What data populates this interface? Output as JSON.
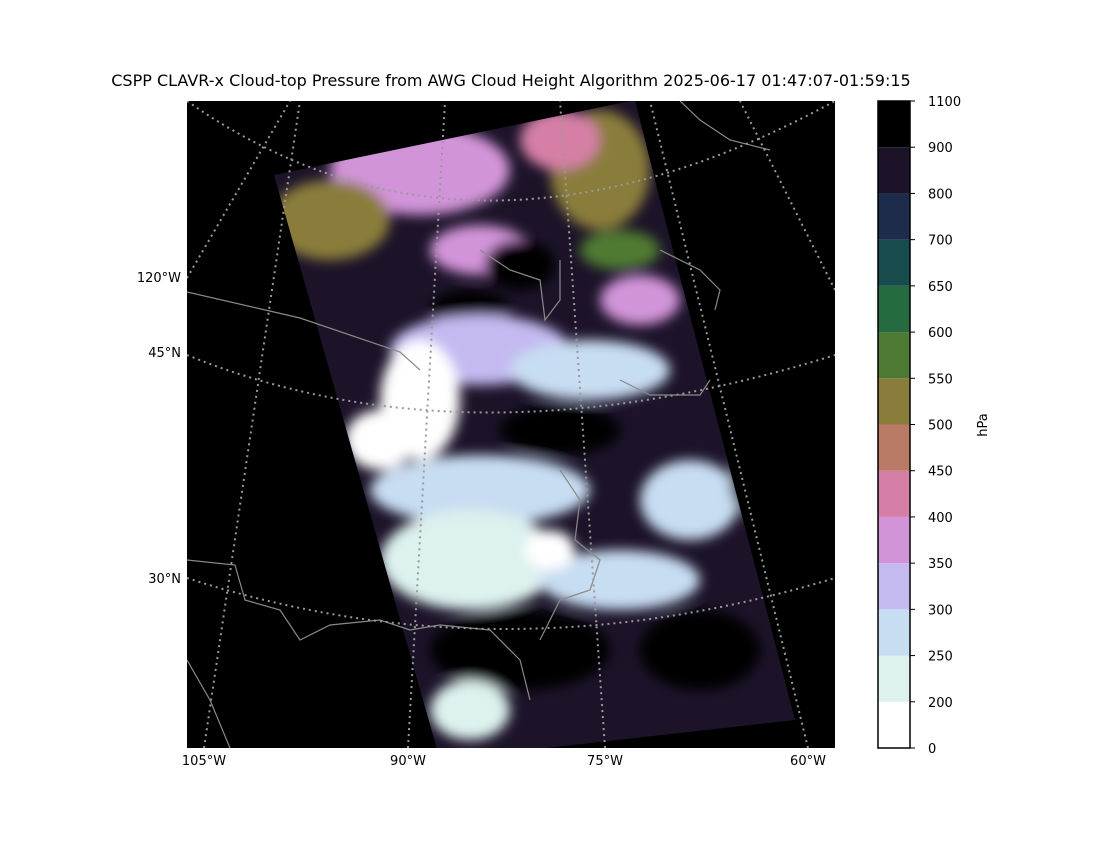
{
  "title": "CSPP CLAVR-x Cloud-top Pressure from AWG Cloud Height Algorithm 2025-06-17 01:47:07-01:59:15",
  "map": {
    "left_labels": [
      "120°W",
      "45°N",
      "30°N"
    ],
    "bottom_labels": [
      "105°W",
      "90°W",
      "75°W",
      "60°W"
    ]
  },
  "colorbar": {
    "label": "hPa",
    "boundaries": [
      0,
      200,
      250,
      300,
      350,
      400,
      450,
      500,
      550,
      600,
      650,
      700,
      800,
      900,
      1100
    ],
    "colors": [
      "#ffffff",
      "#ddf1ee",
      "#c7ddf2",
      "#c4baf0",
      "#d294d9",
      "#d57fa6",
      "#b97a66",
      "#8a7d3b",
      "#4f7a33",
      "#266a40",
      "#184c4c",
      "#1c2c4a",
      "#1c1329",
      "#000000"
    ]
  }
}
